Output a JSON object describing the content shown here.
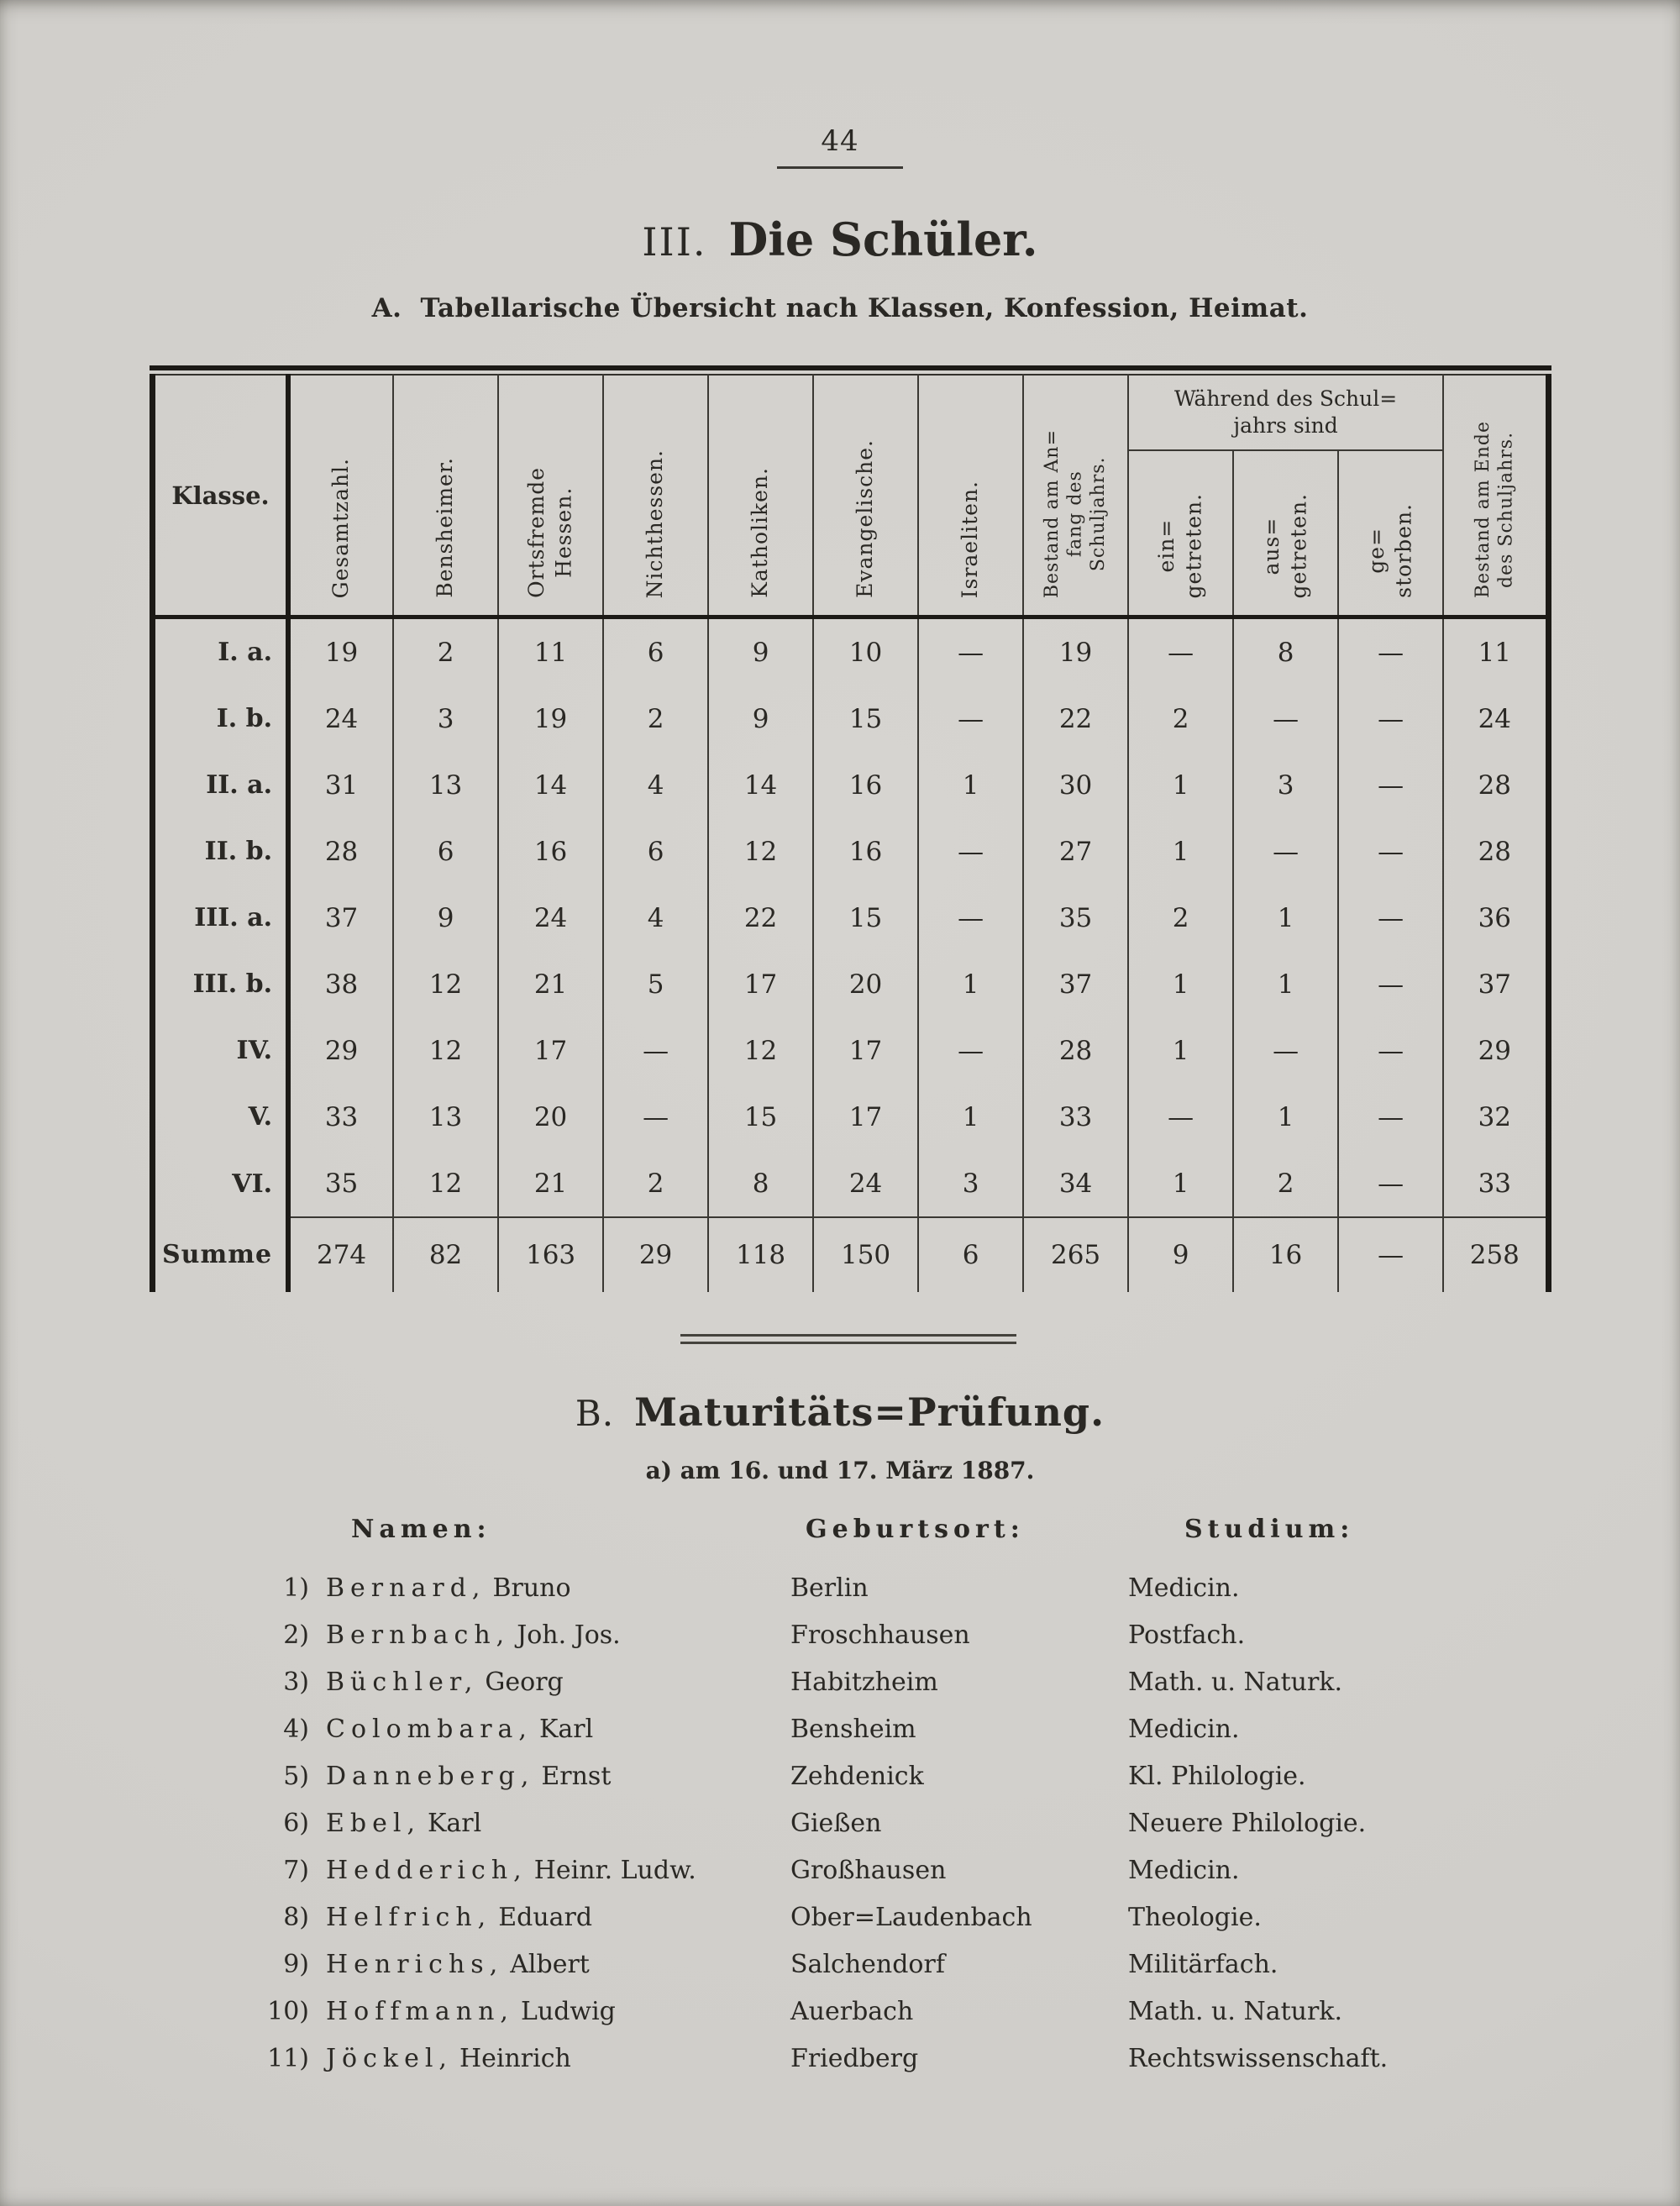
{
  "page": {
    "number": "44"
  },
  "colors": {
    "paper": "#d1cfcb",
    "ink": "#2a2824",
    "rule": "#1c1a16"
  },
  "section_a": {
    "numeral": "III.",
    "title": "Die Schüler.",
    "subtitle_label": "A.",
    "subtitle": "Tabellarische Übersicht nach Klassen, Konfession, Heimat."
  },
  "table": {
    "corner_header": "Klasse.",
    "vertical_headers": [
      "Gesamtzahl.",
      "Bensheimer.",
      "Ortsfremde\nHessen.",
      "Nichthessen.",
      "Katholiken.",
      "Evangelische.",
      "Israeliten.",
      "Bestand am An=\nfang des\nSchuljahrs."
    ],
    "group_header": "Während des Schul=\njahrs sind",
    "group_sub_headers": [
      "ein=\ngetreten.",
      "aus=\ngetreten.",
      "ge=\nstorben."
    ],
    "last_header": "Bestand am Ende\ndes Schuljahrs.",
    "rows": [
      {
        "label": "I. a.",
        "values": [
          "19",
          "2",
          "11",
          "6",
          "9",
          "10",
          "—",
          "19",
          "—",
          "8",
          "—",
          "11"
        ]
      },
      {
        "label": "I. b.",
        "values": [
          "24",
          "3",
          "19",
          "2",
          "9",
          "15",
          "—",
          "22",
          "2",
          "—",
          "—",
          "24"
        ]
      },
      {
        "label": "II. a.",
        "values": [
          "31",
          "13",
          "14",
          "4",
          "14",
          "16",
          "1",
          "30",
          "1",
          "3",
          "—",
          "28"
        ]
      },
      {
        "label": "II. b.",
        "values": [
          "28",
          "6",
          "16",
          "6",
          "12",
          "16",
          "—",
          "27",
          "1",
          "—",
          "—",
          "28"
        ]
      },
      {
        "label": "III. a.",
        "values": [
          "37",
          "9",
          "24",
          "4",
          "22",
          "15",
          "—",
          "35",
          "2",
          "1",
          "—",
          "36"
        ]
      },
      {
        "label": "III. b.",
        "values": [
          "38",
          "12",
          "21",
          "5",
          "17",
          "20",
          "1",
          "37",
          "1",
          "1",
          "—",
          "37"
        ]
      },
      {
        "label": "IV.",
        "values": [
          "29",
          "12",
          "17",
          "—",
          "12",
          "17",
          "—",
          "28",
          "1",
          "—",
          "—",
          "29"
        ]
      },
      {
        "label": "V.",
        "values": [
          "33",
          "13",
          "20",
          "—",
          "15",
          "17",
          "1",
          "33",
          "—",
          "1",
          "—",
          "32"
        ]
      },
      {
        "label": "VI.",
        "values": [
          "35",
          "12",
          "21",
          "2",
          "8",
          "24",
          "3",
          "34",
          "1",
          "2",
          "—",
          "33"
        ]
      }
    ],
    "sum_row": {
      "label": "Summe",
      "values": [
        "274",
        "82",
        "163",
        "29",
        "118",
        "150",
        "6",
        "265",
        "9",
        "16",
        "—",
        "258"
      ]
    }
  },
  "section_b": {
    "label": "B.",
    "title": "Maturitäts=Prüfung.",
    "subtitle": "a) am 16. und 17. März 1887.",
    "col_headers": {
      "name": "Namen:",
      "birthplace": "Geburtsort:",
      "study": "Studium:"
    },
    "candidates": [
      {
        "no": "1)",
        "surname": "Bernard,",
        "given": "Bruno",
        "birthplace": "Berlin",
        "study": "Medicin."
      },
      {
        "no": "2)",
        "surname": "Bernbach,",
        "given": "Joh. Jos.",
        "birthplace": "Froschhausen",
        "study": "Postfach."
      },
      {
        "no": "3)",
        "surname": "Büchler,",
        "given": "Georg",
        "birthplace": "Habitzheim",
        "study": "Math. u. Naturk."
      },
      {
        "no": "4)",
        "surname": "Colombara,",
        "given": "Karl",
        "birthplace": "Bensheim",
        "study": "Medicin."
      },
      {
        "no": "5)",
        "surname": "Danneberg,",
        "given": "Ernst",
        "birthplace": "Zehdenick",
        "study": "Kl. Philologie."
      },
      {
        "no": "6)",
        "surname": "Ebel,",
        "given": "Karl",
        "birthplace": "Gießen",
        "study": "Neuere Philologie."
      },
      {
        "no": "7)",
        "surname": "Hedderich,",
        "given": "Heinr. Ludw.",
        "birthplace": "Großhausen",
        "study": "Medicin."
      },
      {
        "no": "8)",
        "surname": "Helfrich,",
        "given": "Eduard",
        "birthplace": "Ober=Laudenbach",
        "study": "Theologie."
      },
      {
        "no": "9)",
        "surname": "Henrichs,",
        "given": "Albert",
        "birthplace": "Salchendorf",
        "study": "Militärfach."
      },
      {
        "no": "10)",
        "surname": "Hoffmann,",
        "given": "Ludwig",
        "birthplace": "Auerbach",
        "study": "Math. u. Naturk."
      },
      {
        "no": "11)",
        "surname": "Jöckel,",
        "given": "Heinrich",
        "birthplace": "Friedberg",
        "study": "Rechtswissenschaft."
      }
    ]
  }
}
